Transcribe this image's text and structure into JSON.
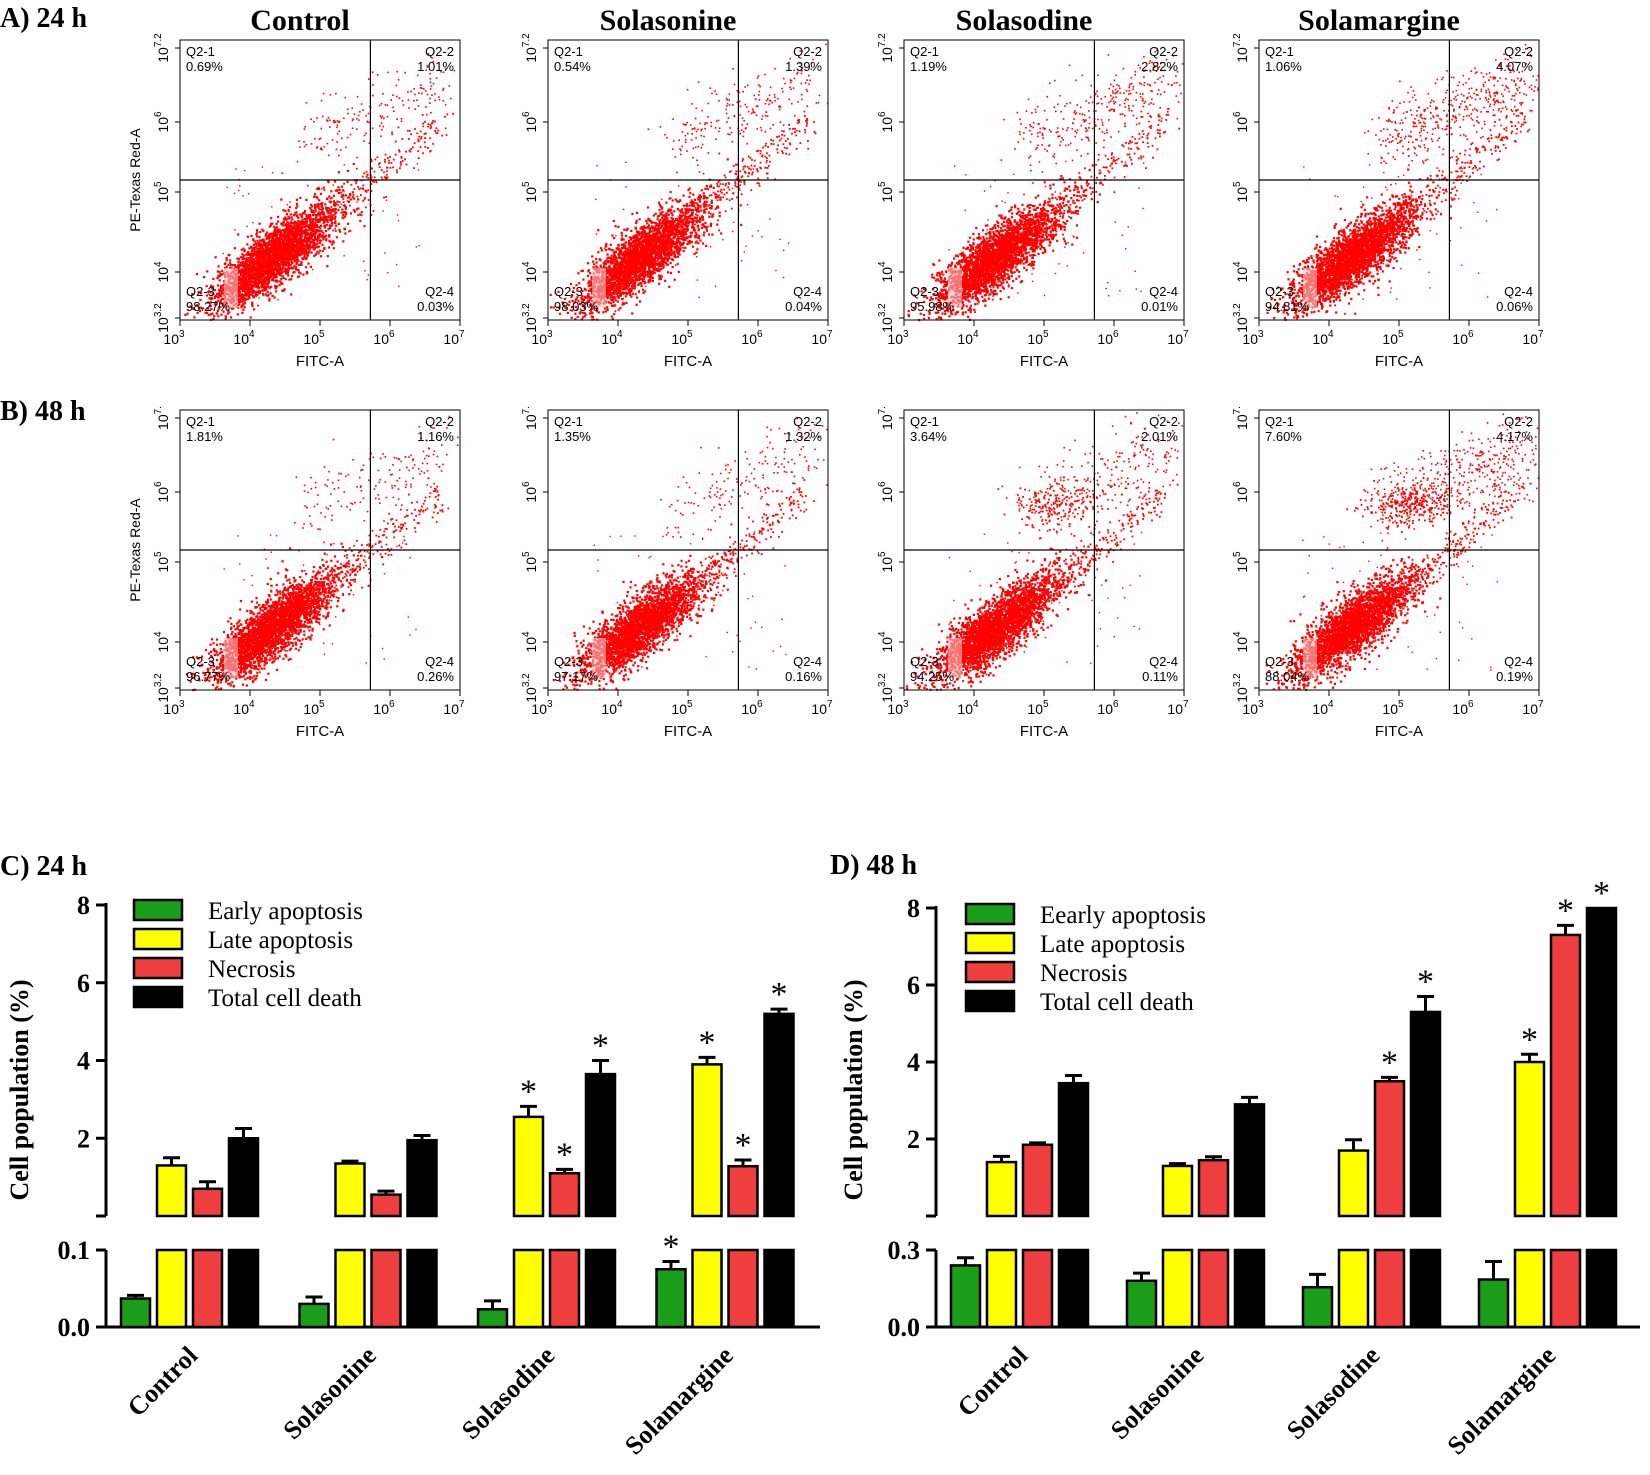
{
  "flow_panels": [
    {
      "label": "A) 24 h",
      "ylabel": "PE-Texas Red-A",
      "xlabel": "FITC-A",
      "x_ticks": [
        {
          "base": "10",
          "exp": "3"
        },
        {
          "base": "10",
          "exp": "4"
        },
        {
          "base": "10",
          "exp": "5"
        },
        {
          "base": "10",
          "exp": "6"
        },
        {
          "base": "10",
          "exp": "7"
        }
      ],
      "y_ticks": [
        {
          "base": "10",
          "exp": "3.2"
        },
        {
          "base": "10",
          "exp": "4"
        },
        {
          "base": "10",
          "exp": "5"
        },
        {
          "base": "10",
          "exp": "6"
        },
        {
          "base": "10",
          "exp": "7.2"
        }
      ],
      "plots": [
        {
          "title": "Control",
          "q1_label": "Q2-1",
          "q1": "0.69%",
          "q2_label": "Q2-2",
          "q2": "1.01%",
          "q3_label": "Q2-3",
          "q3": "98.27%",
          "q4_label": "Q2-4",
          "q4": "0.03%"
        },
        {
          "title": "Solasonine",
          "q1_label": "Q2-1",
          "q1": "0.54%",
          "q2_label": "Q2-2",
          "q2": "1.39%",
          "q3_label": "Q2-3",
          "q3": "98.03%",
          "q4_label": "Q2-4",
          "q4": "0.04%"
        },
        {
          "title": "Solasodine",
          "q1_label": "Q2-1",
          "q1": "1.19%",
          "q2_label": "Q2-2",
          "q2": "2.82%",
          "q3_label": "Q2-3",
          "q3": "95.98%",
          "q4_label": "Q2-4",
          "q4": "0.01%"
        },
        {
          "title": "Solamargine",
          "q1_label": "Q2-1",
          "q1": "1.06%",
          "q2_label": "Q2-2",
          "q2": "4.07%",
          "q3_label": "Q2-3",
          "q3": "94.81%",
          "q4_label": "Q2-4",
          "q4": "0.06%"
        }
      ]
    },
    {
      "label": "B) 48 h",
      "ylabel": "PE-Texas Red-A",
      "xlabel": "FITC-A",
      "x_ticks": [
        {
          "base": "10",
          "exp": "3"
        },
        {
          "base": "10",
          "exp": "4"
        },
        {
          "base": "10",
          "exp": "5"
        },
        {
          "base": "10",
          "exp": "6"
        },
        {
          "base": "10",
          "exp": "7"
        }
      ],
      "y_ticks": [
        {
          "base": "10",
          "exp": "3.2"
        },
        {
          "base": "10",
          "exp": "4"
        },
        {
          "base": "10",
          "exp": "5"
        },
        {
          "base": "10",
          "exp": "6"
        },
        {
          "base": "10",
          "exp": "7."
        }
      ],
      "plots": [
        {
          "title": "",
          "q1_label": "Q2-1",
          "q1": "1.81%",
          "q2_label": "Q2-2",
          "q2": "1.16%",
          "q3_label": "Q2-3",
          "q3": "96.77%",
          "q4_label": "Q2-4",
          "q4": "0.26%"
        },
        {
          "title": "",
          "q1_label": "Q2-1",
          "q1": "1.35%",
          "q2_label": "Q2-2",
          "q2": "1.32%",
          "q3_label": "Q2-3",
          "q3": "97.17%",
          "q4_label": "Q2-4",
          "q4": "0.16%"
        },
        {
          "title": "",
          "q1_label": "Q2-1",
          "q1": "3.64%",
          "q2_label": "Q2-2",
          "q2": "2.01%",
          "q3_label": "Q2-3",
          "q3": "94.25%",
          "q4_label": "Q2-4",
          "q4": "0.11%"
        },
        {
          "title": "",
          "q1_label": "Q2-1",
          "q1": "7.60%",
          "q2_label": "Q2-2",
          "q2": "4.17%",
          "q3_label": "Q2-3",
          "q3": "88.04%",
          "q4_label": "Q2-4",
          "q4": "0.19%"
        }
      ]
    }
  ],
  "chart_data": [
    {
      "type": "bar",
      "panel_label": "C) 24 h",
      "ylabel": "Cell population (%)",
      "categories": [
        "Control",
        "Solasonine",
        "Solasodine",
        "Solamargine"
      ],
      "broken_axis": {
        "lower_ylim": [
          0,
          0.1
        ],
        "lower_ticks": [
          "0.0",
          "0.1"
        ],
        "upper_ylim": [
          0,
          8
        ],
        "upper_ticks": [
          "2",
          "4",
          "6",
          "8"
        ]
      },
      "series": [
        {
          "name": "Early apoptosis",
          "color": "#1a9e1a",
          "values": [
            0.037,
            0.03,
            0.023,
            0.075
          ],
          "errors": [
            0.004,
            0.009,
            0.011,
            0.01
          ],
          "significant": [
            false,
            false,
            false,
            true
          ]
        },
        {
          "name": "Late apoptosis",
          "color": "#ffff00",
          "values": [
            1.3,
            1.35,
            2.55,
            3.9
          ],
          "errors": [
            0.2,
            0.06,
            0.27,
            0.18
          ],
          "significant": [
            false,
            false,
            true,
            true
          ]
        },
        {
          "name": "Necrosis",
          "color": "#ef3e3e",
          "values": [
            0.7,
            0.55,
            1.1,
            1.28
          ],
          "errors": [
            0.18,
            0.09,
            0.1,
            0.16
          ],
          "significant": [
            false,
            false,
            true,
            true
          ]
        },
        {
          "name": "Total cell death",
          "color": "#000000",
          "values": [
            2.0,
            1.95,
            3.65,
            5.2
          ],
          "errors": [
            0.25,
            0.12,
            0.35,
            0.12
          ],
          "significant": [
            false,
            false,
            true,
            true
          ]
        }
      ],
      "significance_marker": "*"
    },
    {
      "type": "bar",
      "panel_label": "D) 48 h",
      "ylabel": "Cell population (%)",
      "categories": [
        "Control",
        "Solasonine",
        "Solasodine",
        "Solamargine"
      ],
      "broken_axis": {
        "lower_ylim": [
          0,
          0.3
        ],
        "lower_ticks": [
          "0.0",
          "0.3"
        ],
        "upper_ylim": [
          0,
          8
        ],
        "upper_ticks": [
          "2",
          "4",
          "6",
          "8"
        ]
      },
      "series": [
        {
          "name": "Eearly apoptosis",
          "color": "#1a9e1a",
          "values": [
            0.24,
            0.18,
            0.155,
            0.185
          ],
          "errors": [
            0.03,
            0.03,
            0.05,
            0.07
          ],
          "significant": [
            false,
            false,
            false,
            false
          ]
        },
        {
          "name": "Late apoptosis",
          "color": "#ffff00",
          "values": [
            1.4,
            1.3,
            1.7,
            4.0
          ],
          "errors": [
            0.15,
            0.06,
            0.28,
            0.2
          ],
          "significant": [
            false,
            false,
            false,
            true
          ]
        },
        {
          "name": "Necrosis",
          "color": "#ef3e3e",
          "values": [
            1.85,
            1.45,
            3.5,
            7.3
          ],
          "errors": [
            0.05,
            0.09,
            0.1,
            0.25
          ],
          "significant": [
            false,
            false,
            true,
            true
          ]
        },
        {
          "name": "Total cell death",
          "color": "#000000",
          "values": [
            3.45,
            2.9,
            5.3,
            8.0
          ],
          "errors": [
            0.2,
            0.18,
            0.4,
            0.0
          ],
          "significant": [
            false,
            false,
            true,
            true
          ]
        }
      ],
      "significance_marker": "*"
    }
  ]
}
